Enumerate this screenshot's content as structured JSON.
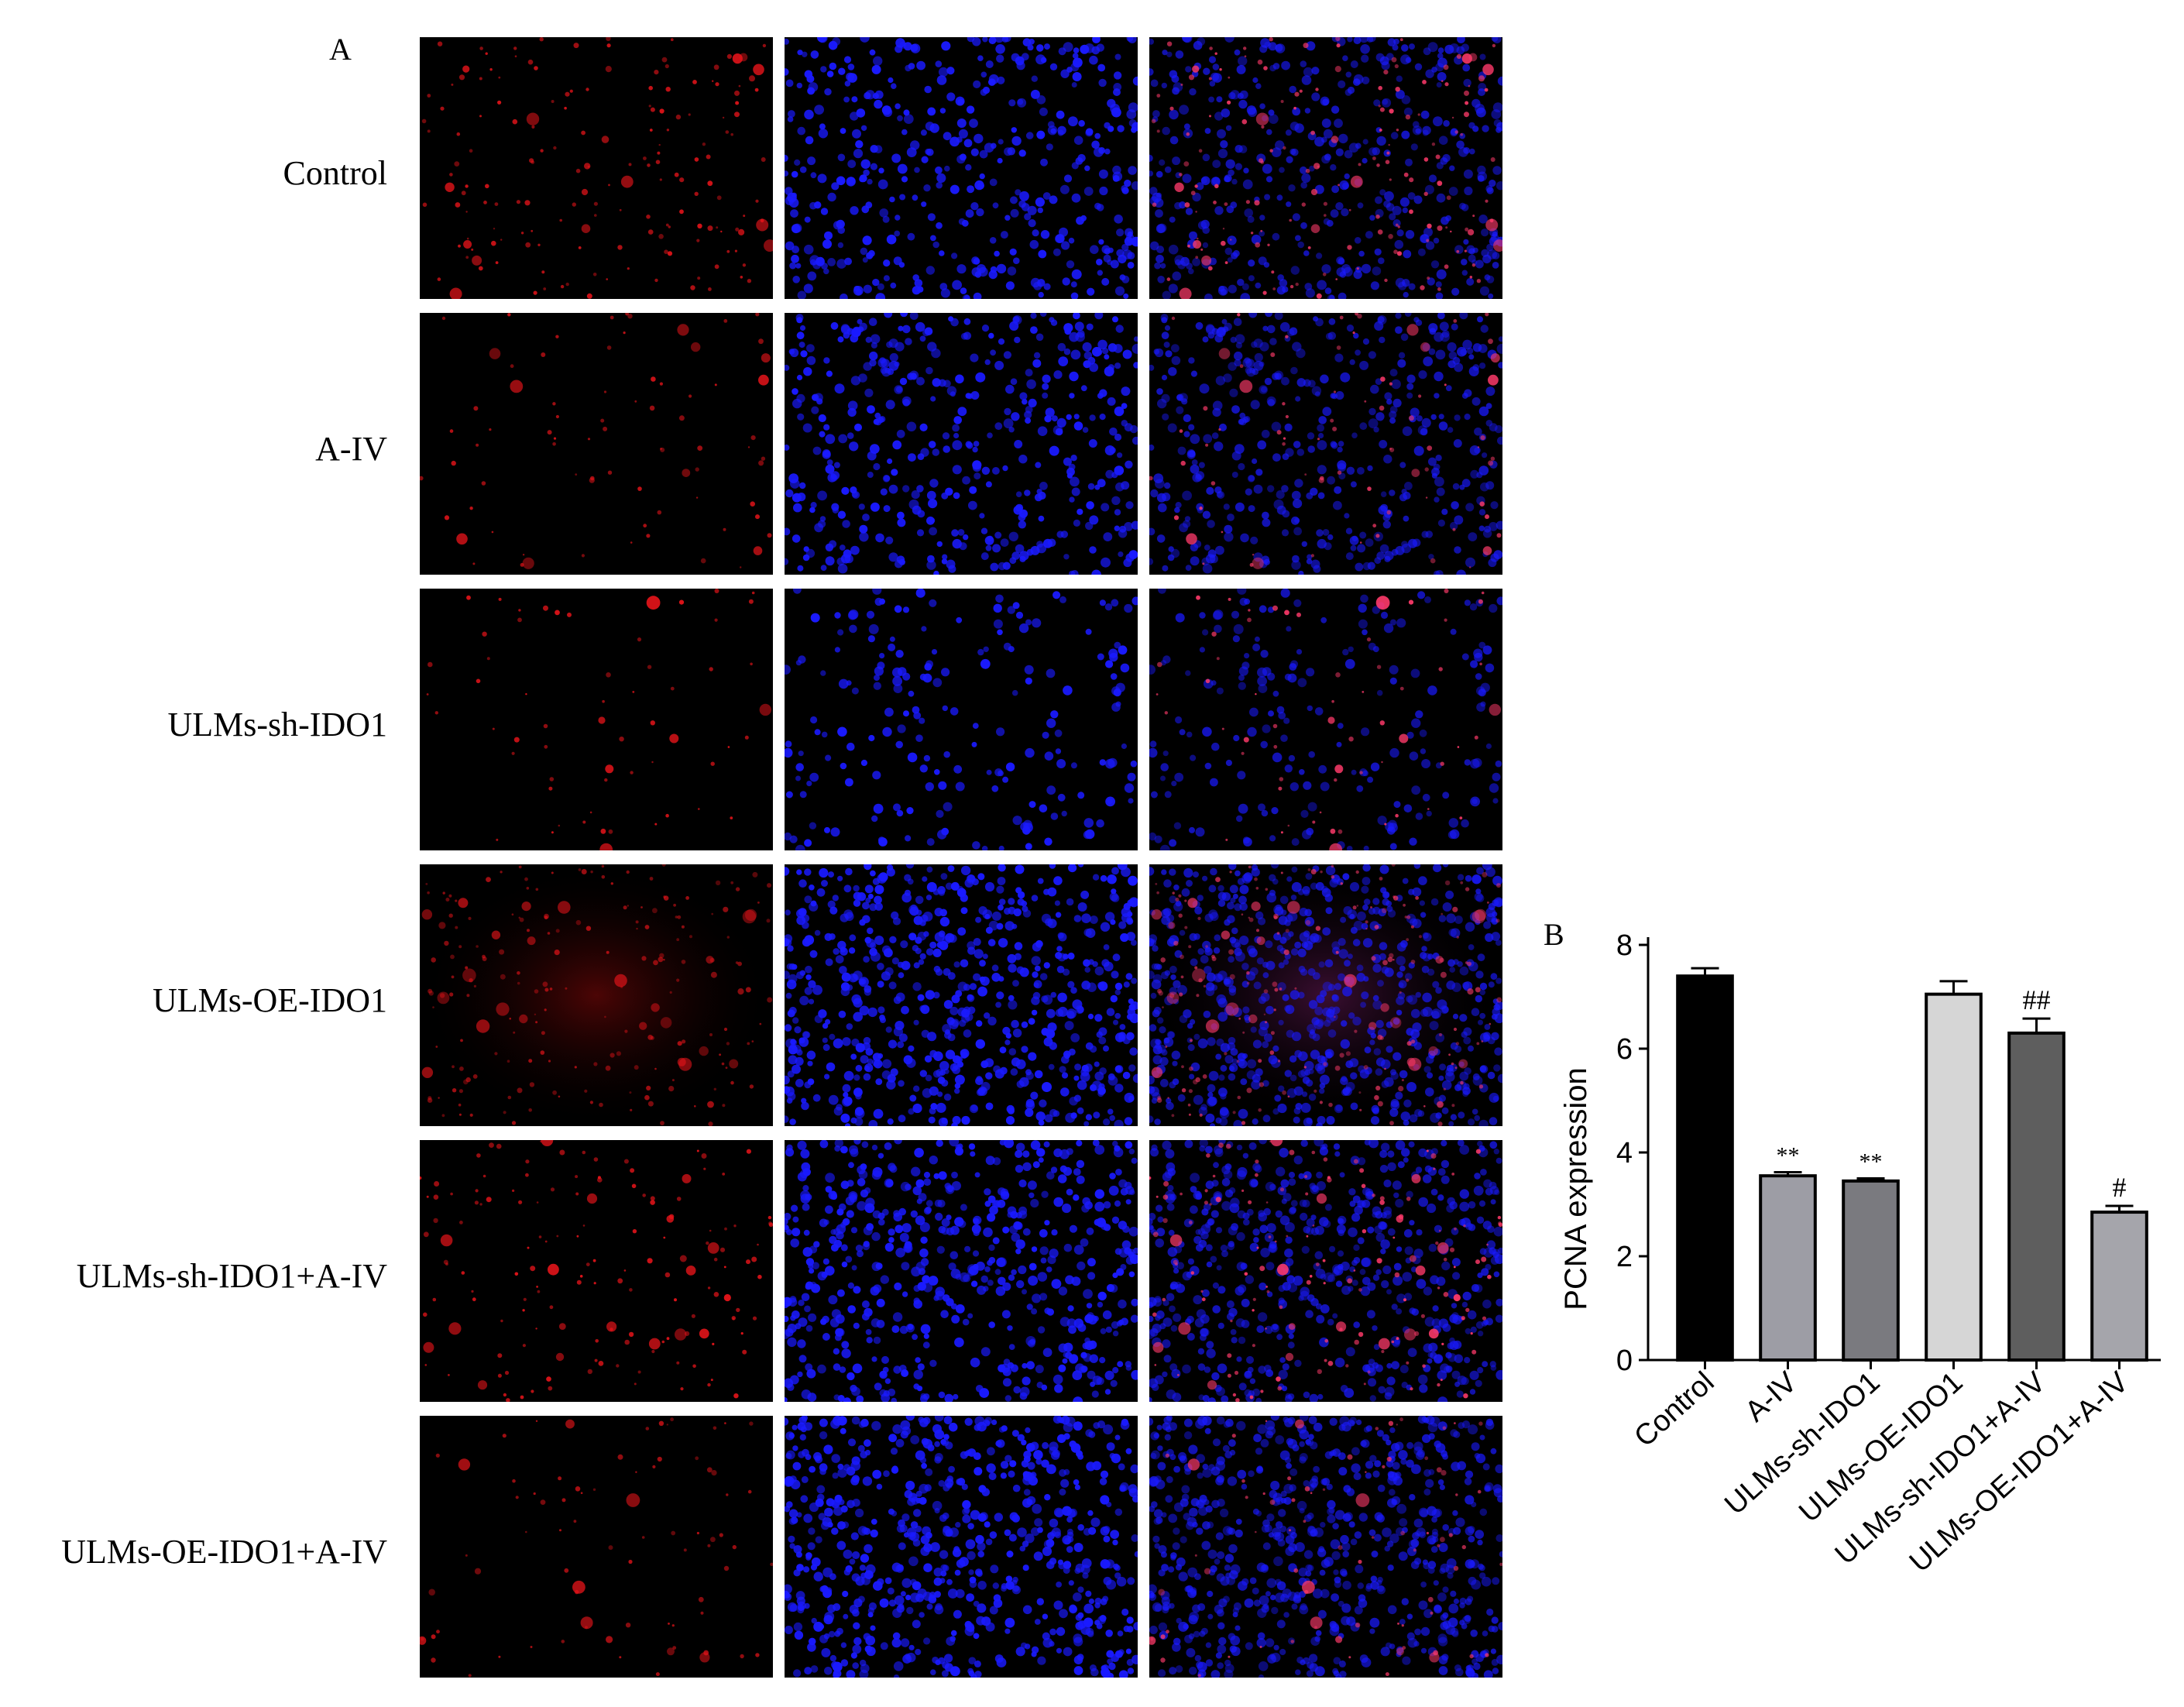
{
  "figure": {
    "panel_a_label": "A",
    "panel_b_label": "B",
    "rows": [
      {
        "label": "Control",
        "red_density": 1.0,
        "red_intensity": 0.9,
        "blue_density": 1.0,
        "glow": 0.0
      },
      {
        "label": "A-IV",
        "red_density": 0.45,
        "red_intensity": 0.85,
        "blue_density": 1.0,
        "glow": 0.0
      },
      {
        "label": "ULMs-sh-IDO1",
        "red_density": 0.35,
        "red_intensity": 0.95,
        "blue_density": 0.45,
        "glow": 0.0
      },
      {
        "label": "ULMs-OE-IDO1",
        "red_density": 1.2,
        "red_intensity": 0.7,
        "blue_density": 1.5,
        "glow": 0.55
      },
      {
        "label": "ULMs-sh-IDO1+A-IV",
        "red_density": 0.9,
        "red_intensity": 0.95,
        "blue_density": 1.3,
        "glow": 0.0
      },
      {
        "label": "ULMs-OE-IDO1+A-IV",
        "red_density": 0.45,
        "red_intensity": 0.8,
        "blue_density": 1.5,
        "glow": 0.0
      }
    ],
    "colors": {
      "red_stain": "#e8141a",
      "blue_stain": "#1a1aff",
      "background": "#000000"
    }
  },
  "chart_data": {
    "type": "bar",
    "categories": [
      "Control",
      "A-IV",
      "ULMs-sh-IDO1",
      "ULMs-OE-IDO1",
      "ULMs-sh-IDO1+A-IV",
      "ULMs-OE-IDO1+A-IV"
    ],
    "values": [
      7.4,
      3.55,
      3.45,
      7.05,
      6.3,
      2.85
    ],
    "errors": [
      0.15,
      0.07,
      0.05,
      0.25,
      0.28,
      0.12
    ],
    "annotations": [
      "",
      "**",
      "**",
      "",
      "##",
      "#"
    ],
    "bar_colors": [
      "#000000",
      "#9d9da5",
      "#7a7a7f",
      "#d6d6d6",
      "#5e5e5e",
      "#a5a5ab"
    ],
    "ylabel": "PCNA expression",
    "xlabel": "",
    "ylim": [
      0,
      8
    ],
    "yticks": [
      "0",
      "2",
      "4",
      "6",
      "8"
    ],
    "grid": false
  }
}
